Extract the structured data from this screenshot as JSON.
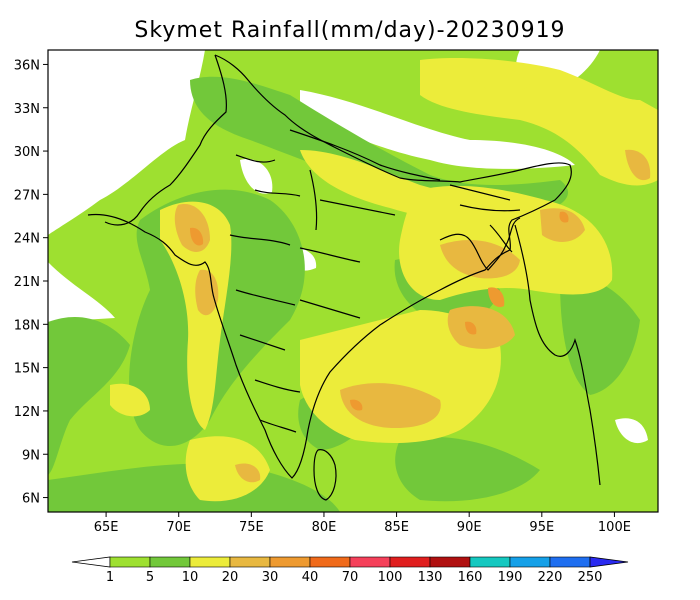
{
  "title": "Skymet Rainfall(mm/day)-20230919",
  "map": {
    "lon_range": [
      61,
      103
    ],
    "lat_range": [
      5,
      37
    ],
    "lat_ticks": [
      {
        "value": 36,
        "label": "36N"
      },
      {
        "value": 33,
        "label": "33N"
      },
      {
        "value": 30,
        "label": "30N"
      },
      {
        "value": 27,
        "label": "27N"
      },
      {
        "value": 24,
        "label": "24N"
      },
      {
        "value": 21,
        "label": "21N"
      },
      {
        "value": 18,
        "label": "18N"
      },
      {
        "value": 15,
        "label": "15N"
      },
      {
        "value": 12,
        "label": "12N"
      },
      {
        "value": 9,
        "label": "9N"
      },
      {
        "value": 6,
        "label": "6N"
      }
    ],
    "lon_ticks": [
      {
        "value": 65,
        "label": "65E"
      },
      {
        "value": 70,
        "label": "70E"
      },
      {
        "value": 75,
        "label": "75E"
      },
      {
        "value": 80,
        "label": "80E"
      },
      {
        "value": 85,
        "label": "85E"
      },
      {
        "value": 90,
        "label": "90E"
      },
      {
        "value": 95,
        "label": "95E"
      },
      {
        "value": 100,
        "label": "100E"
      }
    ]
  },
  "colorbar": {
    "low_color": "#ffffff",
    "high_color": "#2a2af0",
    "bins": [
      {
        "color": "#9ee030"
      },
      {
        "color": "#72c83a"
      },
      {
        "color": "#ecec3a"
      },
      {
        "color": "#e8b840"
      },
      {
        "color": "#ee9a30"
      },
      {
        "color": "#f06a1a"
      },
      {
        "color": "#f5405a"
      },
      {
        "color": "#e01e1e"
      },
      {
        "color": "#b01010"
      },
      {
        "color": "#14c8c0"
      },
      {
        "color": "#14a0e8"
      },
      {
        "color": "#1e6ef0"
      }
    ],
    "labels": [
      "1",
      "5",
      "10",
      "20",
      "30",
      "40",
      "70",
      "100",
      "130",
      "160",
      "190",
      "220",
      "250"
    ]
  }
}
